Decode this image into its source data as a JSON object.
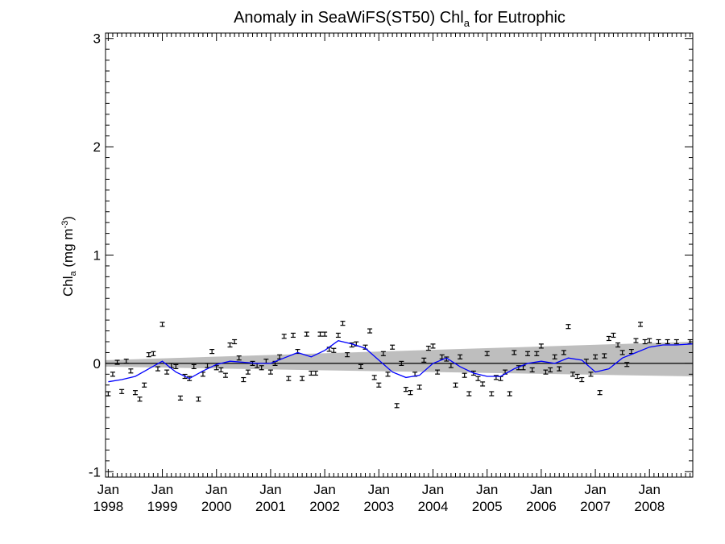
{
  "chart_data": {
    "type": "scatter",
    "title": {
      "main": "Anomaly in SeaWiFS(ST50) Chl",
      "sub": "a",
      "tail": " for Eutrophic"
    },
    "ylabel": {
      "main": "Chl",
      "sub": "a",
      "unit_open": " (mg m",
      "sup": "-3",
      "unit_close": ")"
    },
    "ylim": [
      -1.05,
      3.05
    ],
    "yticks": [
      -1,
      0,
      1,
      2,
      3
    ],
    "xlim": [
      1997.95,
      2008.8
    ],
    "xticks": [
      {
        "x": 1998,
        "top": "Jan",
        "bottom": "1998"
      },
      {
        "x": 1999,
        "top": "Jan",
        "bottom": "1999"
      },
      {
        "x": 2000,
        "top": "Jan",
        "bottom": "2000"
      },
      {
        "x": 2001,
        "top": "Jan",
        "bottom": "2001"
      },
      {
        "x": 2002,
        "top": "Jan",
        "bottom": "2002"
      },
      {
        "x": 2003,
        "top": "Jan",
        "bottom": "2003"
      },
      {
        "x": 2004,
        "top": "Jan",
        "bottom": "2004"
      },
      {
        "x": 2005,
        "top": "Jan",
        "bottom": "2005"
      },
      {
        "x": 2006,
        "top": "Jan",
        "bottom": "2006"
      },
      {
        "x": 2007,
        "top": "Jan",
        "bottom": "2007"
      },
      {
        "x": 2008,
        "top": "Jan",
        "bottom": "2008"
      }
    ],
    "grid": false,
    "zero_line": 0,
    "trend_band": {
      "x": [
        1997.95,
        2008.8
      ],
      "lower": [
        -0.03,
        -0.12
      ],
      "upper": [
        0.03,
        0.2
      ]
    },
    "colors": {
      "points": "#000000",
      "running_mean": "#0000ff",
      "band": "#bebebe",
      "zero_line": "#000000"
    },
    "monthly_anomaly": {
      "x": [
        1998.0,
        1998.083,
        1998.167,
        1998.25,
        1998.333,
        1998.417,
        1998.5,
        1998.583,
        1998.667,
        1998.75,
        1998.833,
        1998.917,
        1999.0,
        1999.083,
        1999.167,
        1999.25,
        1999.333,
        1999.417,
        1999.5,
        1999.583,
        1999.667,
        1999.75,
        1999.833,
        1999.917,
        2000.0,
        2000.083,
        2000.167,
        2000.25,
        2000.333,
        2000.417,
        2000.5,
        2000.583,
        2000.667,
        2000.75,
        2000.833,
        2000.917,
        2001.0,
        2001.083,
        2001.167,
        2001.25,
        2001.333,
        2001.417,
        2001.5,
        2001.583,
        2001.667,
        2001.75,
        2001.833,
        2001.917,
        2002.0,
        2002.083,
        2002.167,
        2002.25,
        2002.333,
        2002.417,
        2002.5,
        2002.583,
        2002.667,
        2002.75,
        2002.833,
        2002.917,
        2003.0,
        2003.083,
        2003.167,
        2003.25,
        2003.333,
        2003.417,
        2003.5,
        2003.583,
        2003.667,
        2003.75,
        2003.833,
        2003.917,
        2004.0,
        2004.083,
        2004.167,
        2004.25,
        2004.333,
        2004.417,
        2004.5,
        2004.583,
        2004.667,
        2004.75,
        2004.833,
        2004.917,
        2005.0,
        2005.083,
        2005.167,
        2005.25,
        2005.333,
        2005.417,
        2005.5,
        2005.583,
        2005.667,
        2005.75,
        2005.833,
        2005.917,
        2006.0,
        2006.083,
        2006.167,
        2006.25,
        2006.333,
        2006.417,
        2006.5,
        2006.583,
        2006.667,
        2006.75,
        2006.833,
        2006.917,
        2007.0,
        2007.083,
        2007.167,
        2007.25,
        2007.333,
        2007.417,
        2007.5,
        2007.583,
        2007.667,
        2007.75,
        2007.833,
        2007.917,
        2008.0,
        2008.167,
        2008.333,
        2008.5,
        2008.75
      ],
      "y": [
        -0.28,
        -0.1,
        0.01,
        -0.26,
        0.02,
        -0.07,
        -0.27,
        -0.33,
        -0.2,
        0.08,
        0.09,
        -0.05,
        0.36,
        -0.08,
        -0.02,
        -0.03,
        -0.32,
        -0.12,
        -0.14,
        -0.03,
        -0.33,
        -0.1,
        -0.02,
        0.11,
        -0.04,
        -0.06,
        -0.11,
        0.17,
        0.2,
        0.05,
        -0.15,
        -0.08,
        0.0,
        -0.02,
        -0.04,
        0.02,
        -0.08,
        0.0,
        0.06,
        0.25,
        -0.14,
        0.26,
        0.11,
        -0.14,
        0.27,
        -0.09,
        -0.09,
        0.27,
        0.27,
        0.13,
        0.12,
        0.26,
        0.37,
        0.08,
        0.17,
        0.18,
        -0.03,
        0.15,
        0.3,
        -0.13,
        -0.2,
        0.09,
        -0.1,
        0.15,
        -0.39,
        0.0,
        -0.24,
        -0.27,
        -0.1,
        -0.22,
        0.03,
        0.14,
        0.16,
        -0.08,
        0.06,
        0.04,
        -0.02,
        -0.2,
        0.06,
        -0.11,
        -0.28,
        -0.09,
        -0.14,
        -0.19,
        0.09,
        -0.28,
        -0.13,
        -0.14,
        -0.08,
        -0.28,
        0.1,
        -0.04,
        -0.04,
        0.09,
        -0.06,
        0.09,
        0.16,
        -0.08,
        -0.06,
        0.06,
        -0.05,
        0.1,
        0.34,
        -0.1,
        -0.12,
        -0.15,
        0.02,
        -0.1,
        0.06,
        -0.27,
        0.07,
        0.23,
        0.26,
        0.17,
        0.1,
        -0.01,
        0.11,
        0.21,
        0.36,
        0.2,
        0.21,
        0.2,
        0.2,
        0.2,
        0.2
      ]
    },
    "running_mean": {
      "x": [
        1998.0,
        1998.25,
        1998.5,
        1998.75,
        1999.0,
        1999.25,
        1999.5,
        1999.75,
        2000.0,
        2000.25,
        2000.5,
        2000.75,
        2001.0,
        2001.25,
        2001.5,
        2001.75,
        2002.0,
        2002.25,
        2002.5,
        2002.75,
        2003.0,
        2003.25,
        2003.5,
        2003.75,
        2004.0,
        2004.25,
        2004.5,
        2004.75,
        2005.0,
        2005.25,
        2005.5,
        2005.75,
        2006.0,
        2006.25,
        2006.5,
        2006.75,
        2007.0,
        2007.25,
        2007.5,
        2007.75,
        2008.0,
        2008.25,
        2008.5,
        2008.8
      ],
      "y": [
        -0.17,
        -0.15,
        -0.12,
        -0.05,
        0.02,
        -0.08,
        -0.14,
        -0.07,
        -0.01,
        0.02,
        0.01,
        0.0,
        0.0,
        0.05,
        0.1,
        0.06,
        0.12,
        0.21,
        0.18,
        0.14,
        0.03,
        -0.08,
        -0.13,
        -0.11,
        0.0,
        0.05,
        -0.03,
        -0.09,
        -0.12,
        -0.12,
        -0.05,
        0.0,
        0.02,
        0.0,
        0.05,
        0.03,
        -0.08,
        -0.05,
        0.05,
        0.1,
        0.15,
        0.17,
        0.17,
        0.18
      ]
    }
  }
}
